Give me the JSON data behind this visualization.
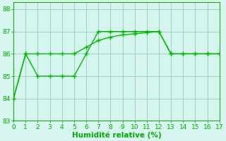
{
  "line1_x": [
    0,
    1,
    2,
    3,
    4,
    5,
    6,
    7,
    8,
    9,
    10,
    11,
    12,
    13,
    14,
    15,
    16,
    17
  ],
  "line1_y": [
    84,
    86,
    85,
    85,
    85,
    85,
    86,
    87,
    87,
    87,
    87,
    87,
    87,
    86,
    86,
    86,
    86,
    86
  ],
  "line2_x": [
    0,
    1,
    2,
    3,
    4,
    5,
    6,
    7,
    8,
    9,
    10,
    11,
    12,
    13,
    14,
    15,
    16,
    17
  ],
  "line2_y": [
    84,
    86,
    86,
    86,
    86,
    86,
    86.3,
    86.6,
    86.75,
    86.85,
    86.9,
    86.95,
    87,
    86,
    86,
    86,
    86,
    86
  ],
  "line_color": "#00bb00",
  "bg_color": "#d5f5ee",
  "grid_color": "#99ccbb",
  "xlabel": "Humidité relative (%)",
  "xlim": [
    0,
    17
  ],
  "ylim": [
    83,
    88.3
  ],
  "yticks": [
    83,
    84,
    85,
    86,
    87,
    88
  ],
  "xticks": [
    0,
    1,
    2,
    3,
    4,
    5,
    6,
    7,
    8,
    9,
    10,
    11,
    12,
    13,
    14,
    15,
    16,
    17
  ],
  "marker": "+",
  "markersize": 4,
  "linewidth": 1.0,
  "xlabel_fontsize": 7.5,
  "tick_fontsize": 6.5,
  "tick_color": "#00aa00",
  "xlabel_color": "#00aa00"
}
